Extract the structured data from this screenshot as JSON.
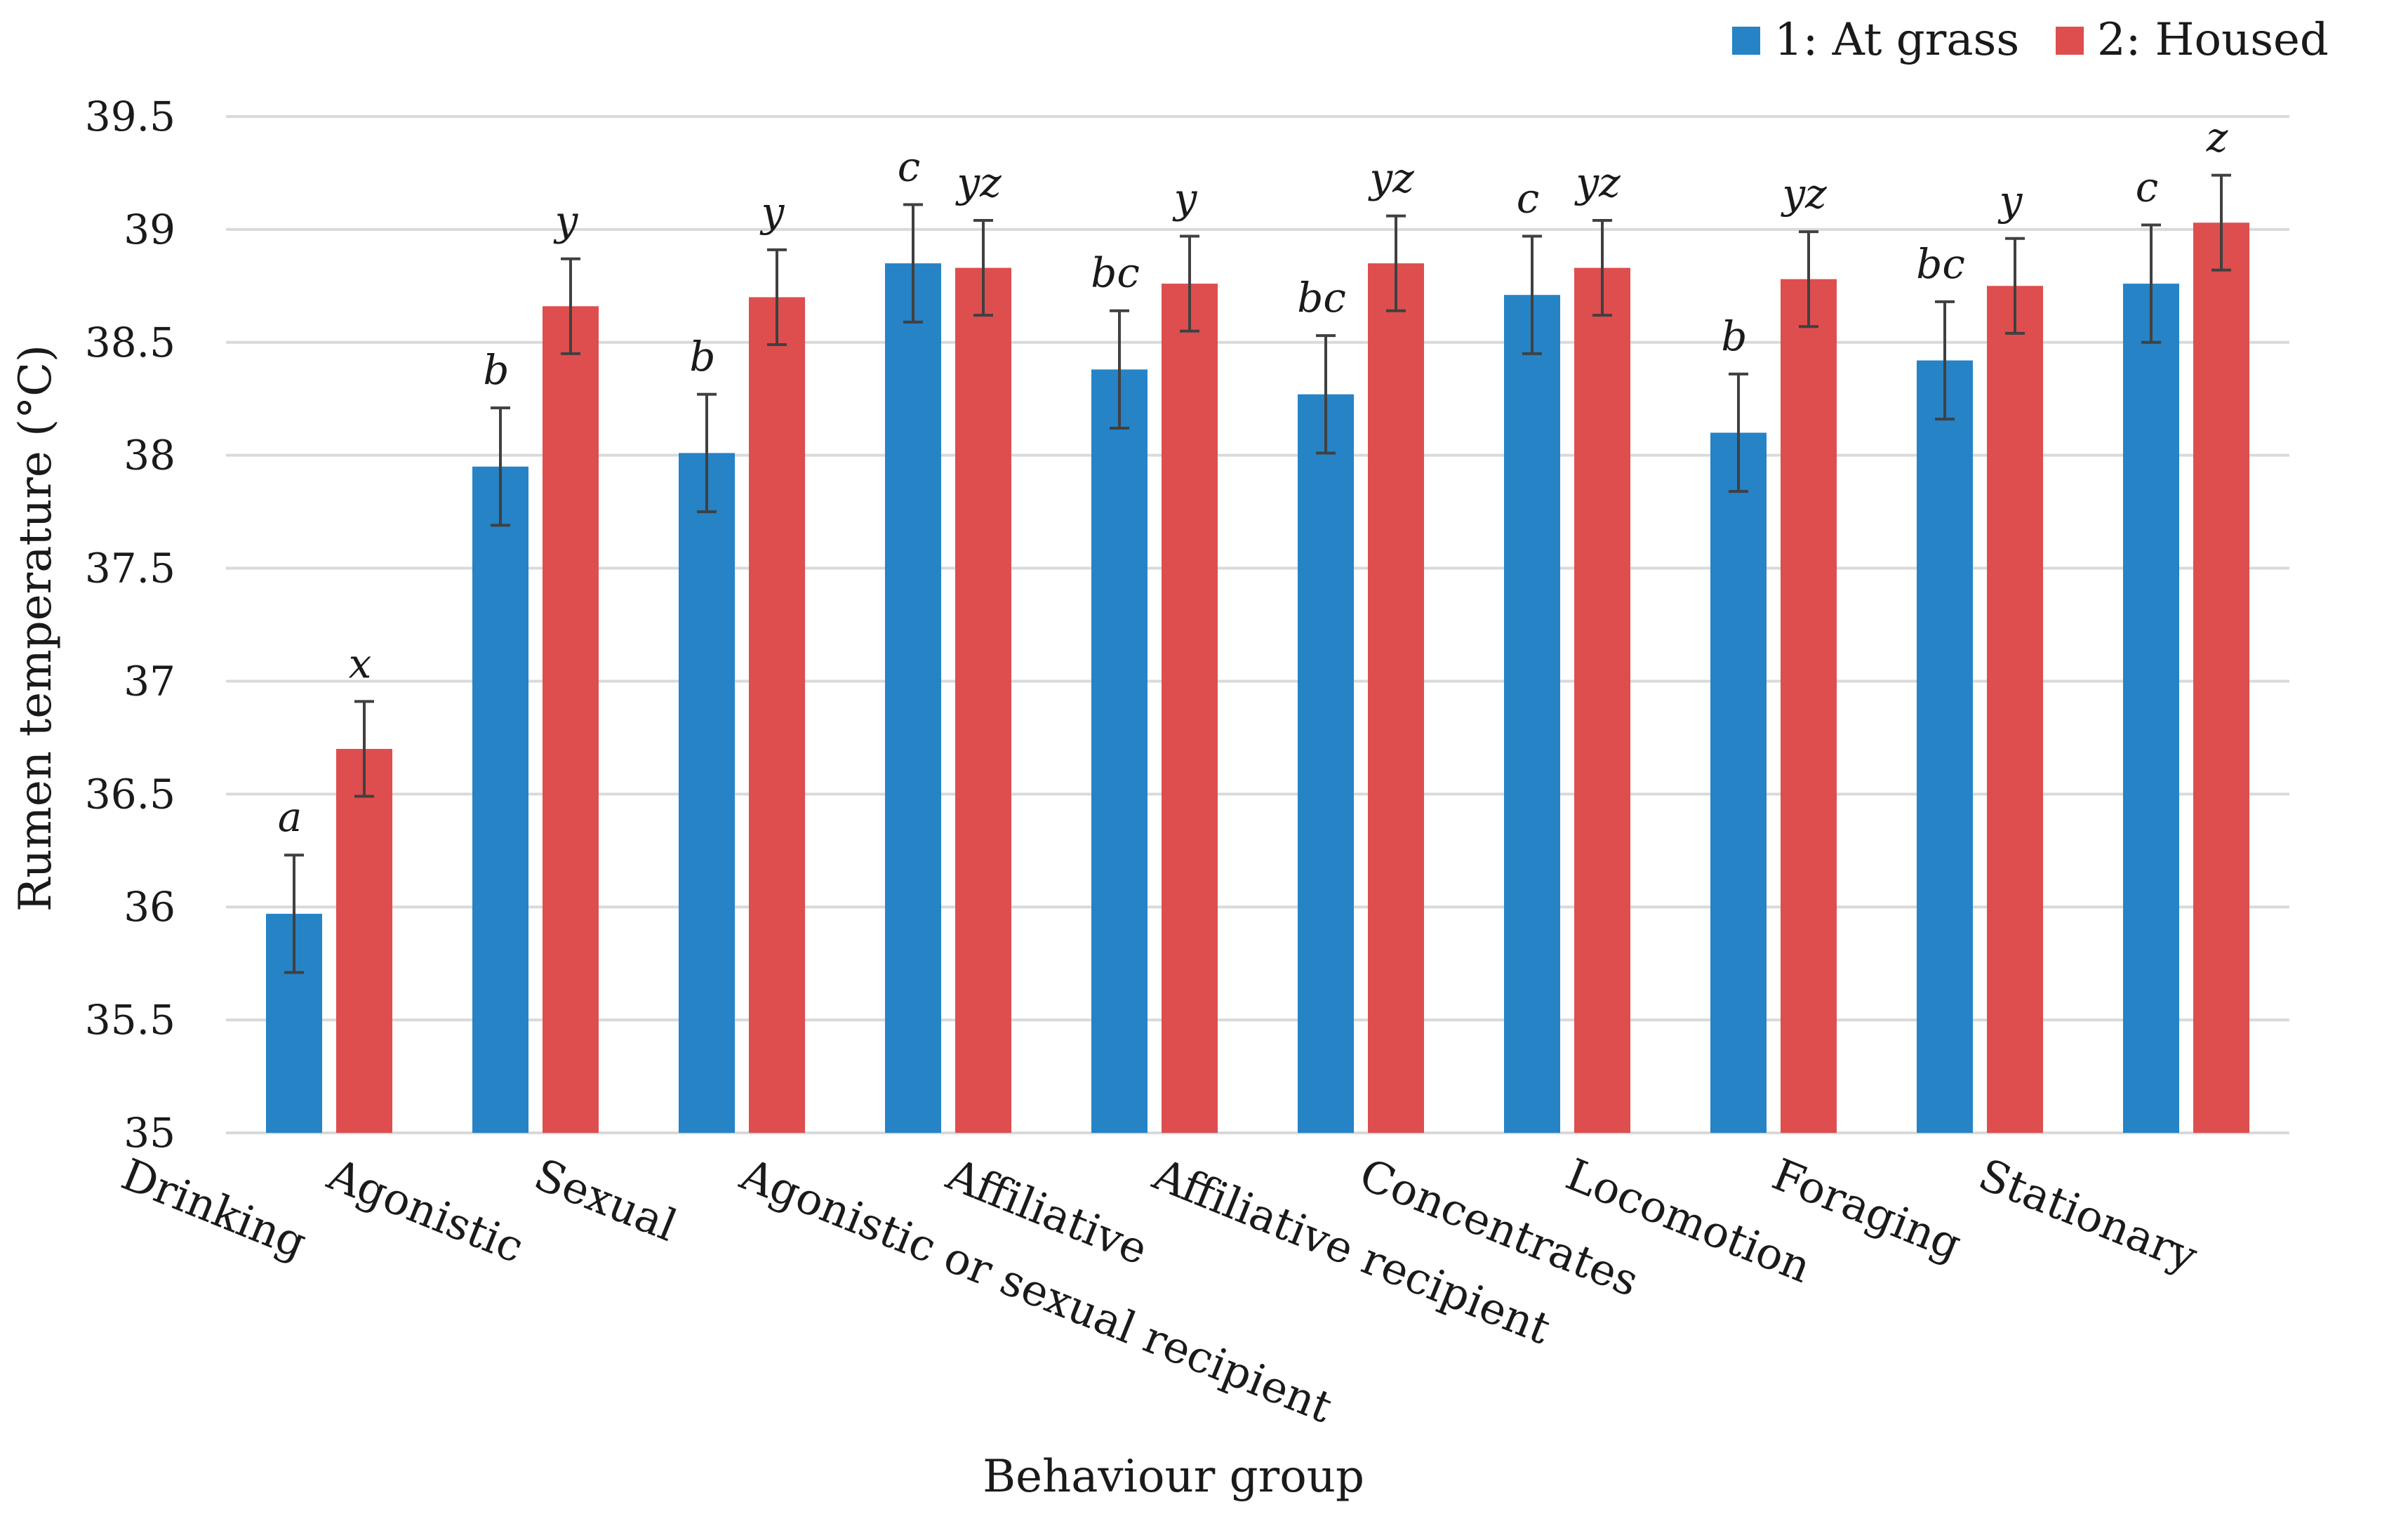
{
  "chart_data": {
    "type": "bar",
    "xlabel": "Behaviour group",
    "ylabel": "Rumen temperature (°C)",
    "ylim": [
      35,
      39.5
    ],
    "yticks": [
      35,
      35.5,
      36,
      36.5,
      37,
      37.5,
      38,
      38.5,
      39,
      39.5
    ],
    "ytick_labels": [
      "35",
      "35.5",
      "36",
      "36.5",
      "37",
      "37.5",
      "38",
      "38.5",
      "39",
      "39.5"
    ],
    "grid": true,
    "legend_position": "top-right",
    "categories": [
      "Drinking",
      "Agonistic",
      "Sexual",
      "Agonistic or sexual recipient",
      "Affiliative",
      "Affiliative recipient",
      "Concentrates",
      "Locomotion",
      "Foraging",
      "Stationary"
    ],
    "series": [
      {
        "name": "1: At grass",
        "color": "#2683c6",
        "values": [
          35.97,
          37.95,
          38.01,
          38.85,
          38.38,
          38.27,
          38.71,
          38.1,
          38.42,
          38.76
        ],
        "error": [
          0.26,
          0.26,
          0.26,
          0.26,
          0.26,
          0.26,
          0.26,
          0.26,
          0.26,
          0.26
        ],
        "labels": [
          "a",
          "b",
          "b",
          "c",
          "bc",
          "bc",
          "c",
          "b",
          "bc",
          "c"
        ]
      },
      {
        "name": "2: Housed",
        "color": "#de4e4e",
        "values": [
          36.7,
          38.66,
          38.7,
          38.83,
          38.76,
          38.85,
          38.83,
          38.78,
          38.75,
          39.03
        ],
        "error": [
          0.21,
          0.21,
          0.21,
          0.21,
          0.21,
          0.21,
          0.21,
          0.21,
          0.21,
          0.21
        ],
        "labels": [
          "x",
          "y",
          "y",
          "yz",
          "y",
          "yz",
          "yz",
          "yz",
          "y",
          "z"
        ]
      }
    ]
  }
}
